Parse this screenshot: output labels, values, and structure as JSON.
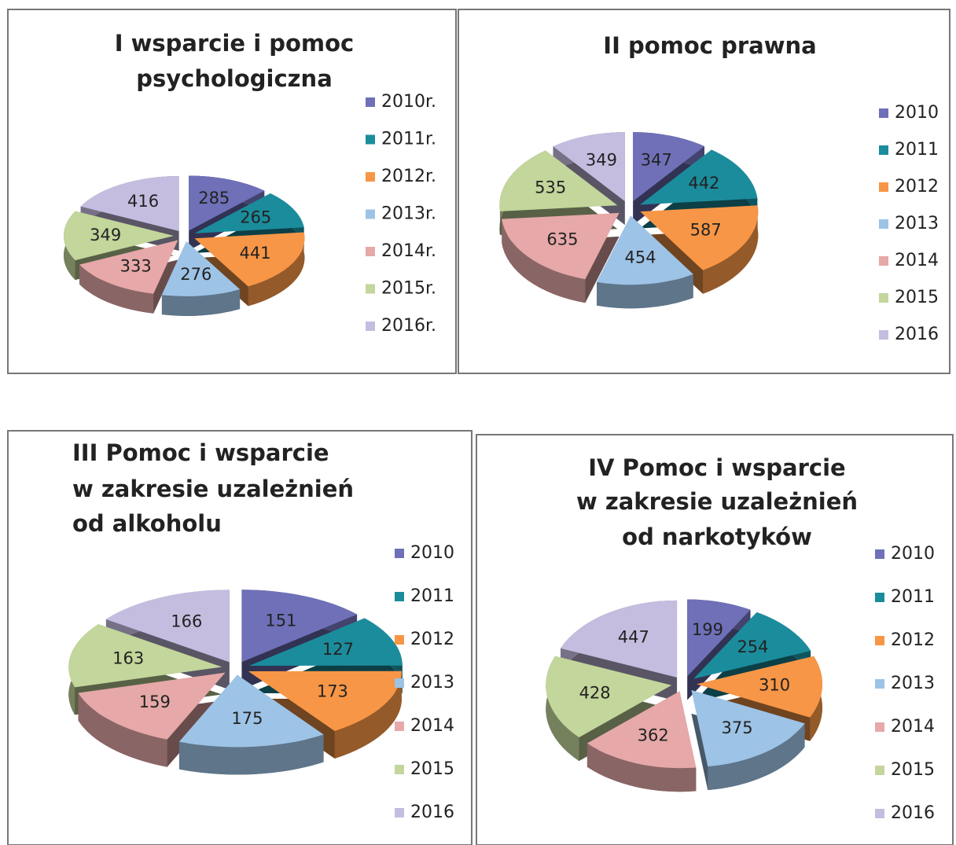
{
  "chart_data": [
    {
      "type": "pie",
      "title": [
        "I wsparcie i pomoc",
        "psychologiczna"
      ],
      "categories": [
        "2010r.",
        "2011r.",
        "2012r.",
        "2013r.",
        "2014r.",
        "2015r.",
        "2016r."
      ],
      "values": [
        285,
        265,
        441,
        276,
        333,
        349,
        416
      ],
      "colors": [
        "#6f70b8",
        "#1b8c9c",
        "#f79646",
        "#9dc3e6",
        "#e6a8a8",
        "#c3d69b",
        "#c5bde0"
      ]
    },
    {
      "type": "pie",
      "title": [
        "II pomoc prawna"
      ],
      "categories": [
        "2010",
        "2011",
        "2012",
        "2013",
        "2014",
        "2015",
        "2016"
      ],
      "values": [
        347,
        442,
        587,
        454,
        635,
        535,
        349
      ],
      "colors": [
        "#6f70b8",
        "#1b8c9c",
        "#f79646",
        "#9dc3e6",
        "#e6a8a8",
        "#c3d69b",
        "#c5bde0"
      ]
    },
    {
      "type": "pie",
      "title": [
        "III Pomoc i wsparcie",
        "w zakresie uzależnień",
        "od alkoholu"
      ],
      "categories": [
        "2010",
        "2011",
        "2012",
        "2013",
        "2014",
        "2015",
        "2016"
      ],
      "values": [
        151,
        127,
        173,
        175,
        159,
        163,
        166
      ],
      "colors": [
        "#6f70b8",
        "#1b8c9c",
        "#f79646",
        "#9dc3e6",
        "#e6a8a8",
        "#c3d69b",
        "#c5bde0"
      ]
    },
    {
      "type": "pie",
      "title": [
        "IV Pomoc i wsparcie",
        "w zakresie uzależnień",
        "od narkotyków"
      ],
      "categories": [
        "2010",
        "2011",
        "2012",
        "2013",
        "2014",
        "2015",
        "2016"
      ],
      "values": [
        199,
        254,
        310,
        375,
        362,
        428,
        447
      ],
      "colors": [
        "#6f70b8",
        "#1b8c9c",
        "#f79646",
        "#9dc3e6",
        "#e6a8a8",
        "#c3d69b",
        "#c5bde0"
      ]
    }
  ]
}
